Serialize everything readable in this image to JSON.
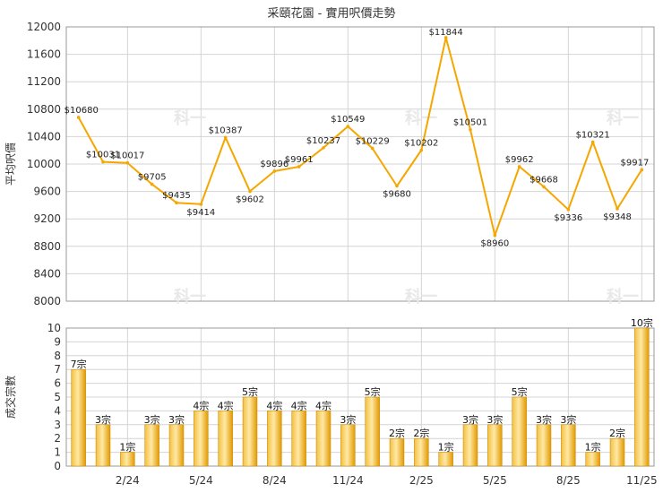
{
  "title": "采頤花園 - 實用呎價走勢",
  "watermark": "科一",
  "chart_data": [
    {
      "type": "line",
      "ylabel": "平均呎價",
      "ylim": [
        8000,
        12000
      ],
      "yticks": [
        8000,
        8400,
        8800,
        9200,
        9600,
        10000,
        10400,
        10800,
        11200,
        11600,
        12000
      ],
      "color": "#f5a700",
      "values": [
        10680,
        10031,
        10017,
        9705,
        9435,
        9414,
        10387,
        9602,
        9896,
        9961,
        10237,
        10549,
        10229,
        9680,
        10202,
        11844,
        10501,
        8960,
        9962,
        9668,
        9336,
        10321,
        9348,
        9917
      ],
      "labels": [
        "$10680",
        "$10031",
        "$10017",
        "$9705",
        "$9435",
        "$9414",
        "$10387",
        "$9602",
        "$9896",
        "$9961",
        "$10237",
        "$10549",
        "$10229",
        "$9680",
        "$10202",
        "$11844",
        "$10501",
        "$8960",
        "$9962",
        "$9668",
        "$9336",
        "$10321",
        "$9348",
        "$9917"
      ]
    },
    {
      "type": "bar",
      "ylabel": "成交宗數",
      "ylim": [
        0,
        10
      ],
      "yticks": [
        0,
        1,
        2,
        3,
        4,
        5,
        6,
        7,
        8,
        9,
        10
      ],
      "color": "#f5a700",
      "values": [
        7,
        3,
        1,
        3,
        3,
        4,
        4,
        5,
        4,
        4,
        4,
        3,
        5,
        2,
        2,
        1,
        3,
        3,
        5,
        3,
        3,
        1,
        2,
        10
      ],
      "labels": [
        "7宗",
        "3宗",
        "1宗",
        "3宗",
        "3宗",
        "4宗",
        "4宗",
        "5宗",
        "4宗",
        "4宗",
        "4宗",
        "3宗",
        "5宗",
        "2宗",
        "2宗",
        "1宗",
        "3宗",
        "3宗",
        "5宗",
        "3宗",
        "3宗",
        "1宗",
        "2宗",
        "10宗"
      ],
      "xticks": [
        {
          "index": 2,
          "label": "2/24"
        },
        {
          "index": 5,
          "label": "5/24"
        },
        {
          "index": 8,
          "label": "8/24"
        },
        {
          "index": 11,
          "label": "11/24"
        },
        {
          "index": 14,
          "label": "2/25"
        },
        {
          "index": 17,
          "label": "5/25"
        },
        {
          "index": 20,
          "label": "8/25"
        },
        {
          "index": 23,
          "label": "11/25"
        }
      ]
    }
  ]
}
